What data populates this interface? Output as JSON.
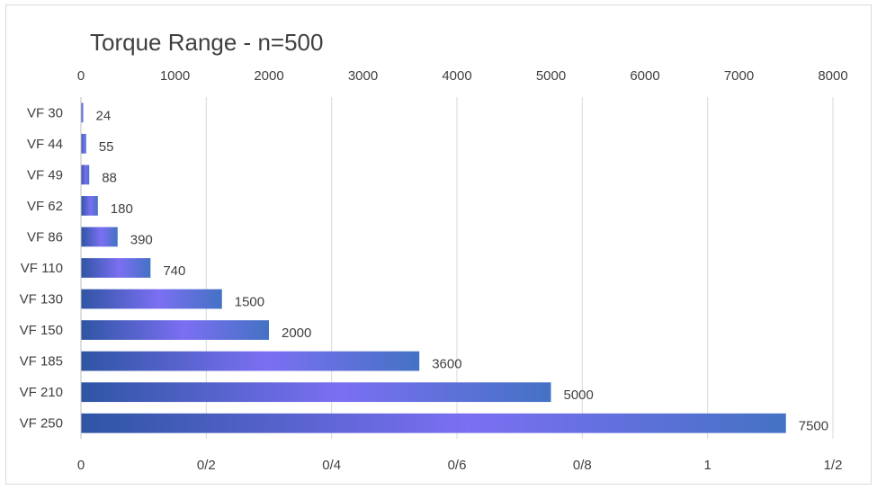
{
  "chart_data": {
    "type": "bar",
    "orientation": "horizontal",
    "title": "Torque Range - n=500",
    "categories": [
      "VF 30",
      "VF 44",
      "VF 49",
      "VF 62",
      "VF 86",
      "VF 110",
      "VF 130",
      "VF 150",
      "VF 185",
      "VF 210",
      "VF 250"
    ],
    "values": [
      24,
      55,
      88,
      180,
      390,
      740,
      1500,
      2000,
      3600,
      5000,
      7500
    ],
    "data_labels": [
      "24",
      "55",
      "88",
      "180",
      "390",
      "740",
      "1500",
      "2000",
      "3600",
      "5000",
      "7500"
    ],
    "top_axis": {
      "range": [
        0,
        8000
      ],
      "ticks": [
        "0",
        "1000",
        "2000",
        "3000",
        "4000",
        "5000",
        "6000",
        "7000",
        "8000"
      ]
    },
    "bottom_axis": {
      "range": [
        0,
        1.2
      ],
      "ticks": [
        "0",
        "0/2",
        "0/4",
        "0/6",
        "0/8",
        "1",
        "1/2"
      ]
    },
    "grid": true,
    "legend": "none",
    "colors": {
      "bar_dark": "#2f55a4",
      "bar_light": "#7b6ff2",
      "bar_end": "#4472c4",
      "grid": "#d9d9d9",
      "text": "#404040"
    }
  }
}
